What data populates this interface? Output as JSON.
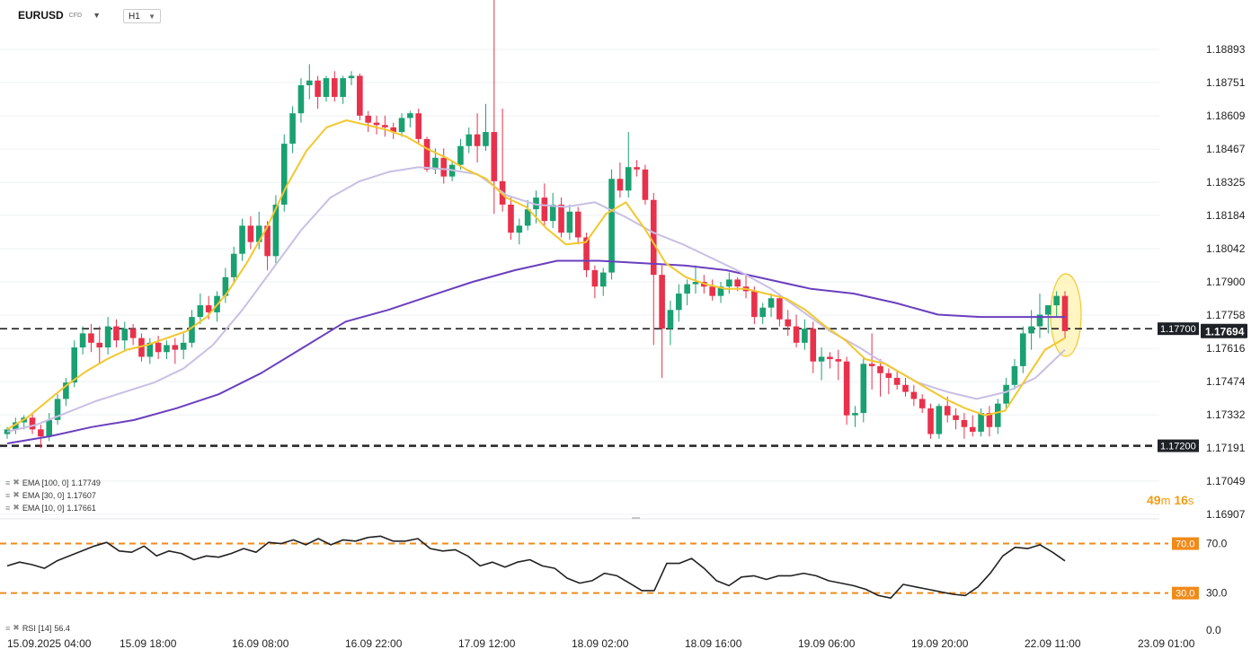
{
  "header": {
    "symbol": "EURUSD",
    "symbol_type": "CFD",
    "timeframe": "H1"
  },
  "colors": {
    "up": "#1aa071",
    "down": "#e8314b",
    "ema10": "#f3c72e",
    "ema30": "#c9bfe3",
    "ema100": "#6a3fbe",
    "rsi_line": "#222222",
    "rsi_levels": "#f08a1a",
    "grid": "#eef0f3",
    "dashed_level": "#222222",
    "highlight": "#fff3b0"
  },
  "indicators": [
    {
      "name": "EMA [100, 0]",
      "value": "1.17749"
    },
    {
      "name": "EMA [30, 0]",
      "value": "1.17607"
    },
    {
      "name": "EMA [10, 0]",
      "value": "1.17661"
    }
  ],
  "rsi": {
    "name": "RSI [14]",
    "value": "56.4"
  },
  "countdown": {
    "minutes": "49",
    "m": "m",
    "seconds": "16",
    "s": "s"
  },
  "chart_data": [
    {
      "type": "candlestick",
      "title": "EURUSD H1",
      "x_tick_labels": [
        "15.09.2025 04:00",
        "15.09 18:00",
        "16.09 08:00",
        "16.09 22:00",
        "17.09 12:00",
        "18.09 02:00",
        "18.09 16:00",
        "19.09 06:00",
        "19.09 20:00",
        "22.09 11:00",
        "23.09 01:00"
      ],
      "y_tick_labels": [
        "1.18893",
        "1.18751",
        "1.18609",
        "1.18467",
        "1.18325",
        "1.18184",
        "1.18042",
        "1.17900",
        "1.17758",
        "1.17616",
        "1.17474",
        "1.17332",
        "1.17191",
        "1.17049",
        "1.16907"
      ],
      "ylim": [
        1.16907,
        1.18893
      ],
      "price_levels": [
        {
          "label": "1.17700",
          "value": 1.177,
          "style": "dashed"
        },
        {
          "label": "1.17200",
          "value": 1.172,
          "style": "dashed"
        }
      ],
      "current_price": {
        "label": "1.17694",
        "value": 1.17694
      },
      "candles": [
        [
          1.1725,
          1.1728,
          1.1723,
          1.1727
        ],
        [
          1.1727,
          1.1732,
          1.1725,
          1.173
        ],
        [
          1.173,
          1.1733,
          1.1727,
          1.1732
        ],
        [
          1.1732,
          1.1734,
          1.1725,
          1.1727
        ],
        [
          1.1727,
          1.1729,
          1.1719,
          1.1724
        ],
        [
          1.1724,
          1.1734,
          1.1722,
          1.1731
        ],
        [
          1.1731,
          1.1742,
          1.1729,
          1.174
        ],
        [
          1.174,
          1.1749,
          1.1737,
          1.1747
        ],
        [
          1.1747,
          1.1765,
          1.1745,
          1.1762
        ],
        [
          1.1762,
          1.1771,
          1.1759,
          1.1768
        ],
        [
          1.1768,
          1.1772,
          1.176,
          1.1764
        ],
        [
          1.1764,
          1.1771,
          1.1755,
          1.1762
        ],
        [
          1.1762,
          1.1775,
          1.1759,
          1.1771
        ],
        [
          1.1771,
          1.1774,
          1.1762,
          1.1765
        ],
        [
          1.1765,
          1.1773,
          1.1761,
          1.177
        ],
        [
          1.177,
          1.1772,
          1.1763,
          1.1766
        ],
        [
          1.1766,
          1.1768,
          1.1756,
          1.1758
        ],
        [
          1.1758,
          1.1766,
          1.1755,
          1.1764
        ],
        [
          1.1764,
          1.1767,
          1.1757,
          1.176
        ],
        [
          1.176,
          1.1765,
          1.1757,
          1.1763
        ],
        [
          1.1763,
          1.1766,
          1.1755,
          1.1761
        ],
        [
          1.1761,
          1.1768,
          1.1757,
          1.1764
        ],
        [
          1.1764,
          1.1778,
          1.1762,
          1.1775
        ],
        [
          1.1775,
          1.1785,
          1.1772,
          1.178
        ],
        [
          1.178,
          1.1784,
          1.1774,
          1.1777
        ],
        [
          1.1777,
          1.1786,
          1.1773,
          1.1784
        ],
        [
          1.1784,
          1.1796,
          1.1781,
          1.1792
        ],
        [
          1.1792,
          1.1805,
          1.179,
          1.1802
        ],
        [
          1.1802,
          1.1817,
          1.1799,
          1.1814
        ],
        [
          1.1814,
          1.1818,
          1.1804,
          1.1807
        ],
        [
          1.1807,
          1.182,
          1.1804,
          1.1814
        ],
        [
          1.1814,
          1.1816,
          1.1795,
          1.1801
        ],
        [
          1.1801,
          1.1827,
          1.1798,
          1.1823
        ],
        [
          1.1823,
          1.1853,
          1.182,
          1.1849
        ],
        [
          1.1849,
          1.1865,
          1.1845,
          1.1862
        ],
        [
          1.1862,
          1.1877,
          1.1858,
          1.1874
        ],
        [
          1.1874,
          1.1883,
          1.1868,
          1.1876
        ],
        [
          1.1876,
          1.1878,
          1.1864,
          1.1869
        ],
        [
          1.1869,
          1.1878,
          1.1867,
          1.1877
        ],
        [
          1.1877,
          1.188,
          1.1867,
          1.1869
        ],
        [
          1.1869,
          1.1878,
          1.1866,
          1.1877
        ],
        [
          1.1877,
          1.188,
          1.1874,
          1.1878
        ],
        [
          1.1878,
          1.1879,
          1.1859,
          1.1861
        ],
        [
          1.1861,
          1.1863,
          1.1854,
          1.1858
        ],
        [
          1.1858,
          1.1861,
          1.1853,
          1.1857
        ],
        [
          1.1857,
          1.1861,
          1.1852,
          1.1856
        ],
        [
          1.1856,
          1.1858,
          1.1851,
          1.1854
        ],
        [
          1.1854,
          1.1862,
          1.1852,
          1.186
        ],
        [
          1.186,
          1.1863,
          1.1856,
          1.1862
        ],
        [
          1.1862,
          1.1864,
          1.1849,
          1.1851
        ],
        [
          1.1851,
          1.1852,
          1.1837,
          1.1838
        ],
        [
          1.1838,
          1.1847,
          1.1836,
          1.1843
        ],
        [
          1.1843,
          1.1847,
          1.1832,
          1.1835
        ],
        [
          1.1835,
          1.1842,
          1.1833,
          1.184
        ],
        [
          1.184,
          1.1851,
          1.1838,
          1.1848
        ],
        [
          1.1848,
          1.1856,
          1.1845,
          1.1853
        ],
        [
          1.1853,
          1.1862,
          1.1841,
          1.1848
        ],
        [
          1.1848,
          1.1866,
          1.1846,
          1.1854
        ],
        [
          1.1854,
          1.1946,
          1.1819,
          1.1833
        ],
        [
          1.1833,
          1.1864,
          1.182,
          1.1823
        ],
        [
          1.1823,
          1.1826,
          1.1808,
          1.1811
        ],
        [
          1.1811,
          1.1817,
          1.1806,
          1.1814
        ],
        [
          1.1814,
          1.1825,
          1.1812,
          1.1821
        ],
        [
          1.1821,
          1.1829,
          1.1815,
          1.1826
        ],
        [
          1.1826,
          1.1832,
          1.1814,
          1.1816
        ],
        [
          1.1816,
          1.1828,
          1.1813,
          1.1823
        ],
        [
          1.1823,
          1.1826,
          1.1809,
          1.1811
        ],
        [
          1.1811,
          1.1823,
          1.1808,
          1.182
        ],
        [
          1.182,
          1.1822,
          1.1806,
          1.1809
        ],
        [
          1.1809,
          1.1811,
          1.1792,
          1.1795
        ],
        [
          1.1795,
          1.1797,
          1.1783,
          1.1788
        ],
        [
          1.1788,
          1.1796,
          1.1784,
          1.1794
        ],
        [
          1.1794,
          1.1838,
          1.1791,
          1.1834
        ],
        [
          1.1834,
          1.1841,
          1.1826,
          1.1829
        ],
        [
          1.1829,
          1.1854,
          1.1826,
          1.1839
        ],
        [
          1.1839,
          1.1842,
          1.1835,
          1.1838
        ],
        [
          1.1838,
          1.184,
          1.1823,
          1.1825
        ],
        [
          1.1825,
          1.1828,
          1.1763,
          1.1793
        ],
        [
          1.1793,
          1.1797,
          1.1749,
          1.177
        ],
        [
          1.177,
          1.1782,
          1.1763,
          1.1778
        ],
        [
          1.1778,
          1.1789,
          1.1773,
          1.1785
        ],
        [
          1.1785,
          1.1791,
          1.178,
          1.1789
        ],
        [
          1.1789,
          1.1797,
          1.1785,
          1.179
        ],
        [
          1.179,
          1.1793,
          1.1785,
          1.1788
        ],
        [
          1.1788,
          1.1791,
          1.1782,
          1.1784
        ],
        [
          1.1784,
          1.179,
          1.1781,
          1.1788
        ],
        [
          1.1788,
          1.1794,
          1.1785,
          1.1791
        ],
        [
          1.1791,
          1.1792,
          1.1786,
          1.1788
        ],
        [
          1.1788,
          1.1793,
          1.1783,
          1.1786
        ],
        [
          1.1786,
          1.1788,
          1.1772,
          1.1775
        ],
        [
          1.1775,
          1.1781,
          1.1772,
          1.1779
        ],
        [
          1.1779,
          1.1785,
          1.1775,
          1.1783
        ],
        [
          1.1783,
          1.1785,
          1.1771,
          1.1774
        ],
        [
          1.1774,
          1.1778,
          1.1767,
          1.1771
        ],
        [
          1.1771,
          1.1776,
          1.1762,
          1.1764
        ],
        [
          1.1764,
          1.1774,
          1.1761,
          1.177
        ],
        [
          1.177,
          1.1773,
          1.1751,
          1.1756
        ],
        [
          1.1756,
          1.1762,
          1.1748,
          1.1758
        ],
        [
          1.1758,
          1.176,
          1.1753,
          1.1757
        ],
        [
          1.1757,
          1.1761,
          1.1748,
          1.1756
        ],
        [
          1.1756,
          1.1758,
          1.1729,
          1.1733
        ],
        [
          1.1733,
          1.1737,
          1.1728,
          1.1734
        ],
        [
          1.1734,
          1.1758,
          1.173,
          1.1755
        ],
        [
          1.1755,
          1.1768,
          1.1744,
          1.1754
        ],
        [
          1.1754,
          1.1757,
          1.1741,
          1.1751
        ],
        [
          1.1751,
          1.1753,
          1.1742,
          1.1749
        ],
        [
          1.1749,
          1.1752,
          1.1744,
          1.1746
        ],
        [
          1.1746,
          1.1749,
          1.1741,
          1.1743
        ],
        [
          1.1743,
          1.1746,
          1.1737,
          1.174
        ],
        [
          1.174,
          1.1742,
          1.1734,
          1.1736
        ],
        [
          1.1736,
          1.1738,
          1.1723,
          1.1725
        ],
        [
          1.1725,
          1.1738,
          1.1723,
          1.1737
        ],
        [
          1.1737,
          1.1741,
          1.173,
          1.1733
        ],
        [
          1.1733,
          1.1736,
          1.1727,
          1.1731
        ],
        [
          1.1731,
          1.1734,
          1.1723,
          1.1728
        ],
        [
          1.1728,
          1.1733,
          1.1724,
          1.1726
        ],
        [
          1.1726,
          1.1736,
          1.1724,
          1.1734
        ],
        [
          1.1734,
          1.1737,
          1.1724,
          1.1728
        ],
        [
          1.1728,
          1.174,
          1.1725,
          1.1738
        ],
        [
          1.1738,
          1.1749,
          1.1736,
          1.1746
        ],
        [
          1.1746,
          1.1757,
          1.1744,
          1.1754
        ],
        [
          1.1754,
          1.1771,
          1.1751,
          1.1768
        ],
        [
          1.1768,
          1.1778,
          1.1761,
          1.1771
        ],
        [
          1.1771,
          1.1785,
          1.1766,
          1.1776
        ],
        [
          1.1776,
          1.178,
          1.1768,
          1.178
        ],
        [
          1.178,
          1.1786,
          1.1775,
          1.1784
        ],
        [
          1.1784,
          1.1786,
          1.1766,
          1.1769
        ]
      ],
      "ema10": [
        1.1727,
        1.1732,
        1.1739,
        1.1746,
        1.1752,
        1.1757,
        1.1761,
        1.1763,
        1.1766,
        1.1769,
        1.1775,
        1.1785,
        1.1798,
        1.1813,
        1.1831,
        1.1846,
        1.1856,
        1.1859,
        1.1857,
        1.1855,
        1.1852,
        1.1847,
        1.1843,
        1.1838,
        1.1834,
        1.1826,
        1.1822,
        1.1813,
        1.1806,
        1.1807,
        1.1819,
        1.1824,
        1.1812,
        1.1798,
        1.1792,
        1.1789,
        1.1787,
        1.1787,
        1.1785,
        1.1783,
        1.1778,
        1.1771,
        1.1765,
        1.1757,
        1.1755,
        1.175,
        1.1745,
        1.174,
        1.1736,
        1.1733,
        1.1735,
        1.1748,
        1.1761,
        1.1766
      ],
      "ema30": [
        1.1726,
        1.1729,
        1.1734,
        1.1739,
        1.1743,
        1.1747,
        1.1753,
        1.1763,
        1.1778,
        1.1795,
        1.1812,
        1.1826,
        1.1833,
        1.1837,
        1.1839,
        1.1838,
        1.1836,
        1.1827,
        1.1823,
        1.1822,
        1.1824,
        1.1818,
        1.1811,
        1.1806,
        1.18,
        1.1794,
        1.1787,
        1.1778,
        1.1769,
        1.1762,
        1.1754,
        1.1747,
        1.1743,
        1.174,
        1.1743,
        1.1749,
        1.1761
      ],
      "ema100": [
        1.1721,
        1.1724,
        1.1728,
        1.1731,
        1.1736,
        1.1742,
        1.1751,
        1.1762,
        1.1773,
        1.1778,
        1.1784,
        1.179,
        1.1795,
        1.1799,
        1.1799,
        1.1798,
        1.1797,
        1.1795,
        1.1791,
        1.1787,
        1.1785,
        1.1781,
        1.1776,
        1.1775,
        1.1775,
        1.1775
      ]
    },
    {
      "type": "line",
      "title": "RSI [14]",
      "y_tick_labels": [
        "70.0",
        "30.0",
        "0.0"
      ],
      "ylim": [
        0,
        90
      ],
      "levels": [
        70,
        30
      ],
      "values": [
        52,
        55,
        53,
        50,
        56,
        60,
        64,
        68,
        71,
        64,
        63,
        68,
        60,
        64,
        62,
        57,
        60,
        59,
        62,
        66,
        63,
        71,
        70,
        73,
        69,
        74,
        69,
        73,
        72,
        75,
        76,
        72,
        72,
        74,
        66,
        64,
        65,
        60,
        52,
        55,
        51,
        55,
        57,
        52,
        50,
        42,
        38,
        40,
        46,
        44,
        38,
        32,
        32,
        54,
        54,
        58,
        50,
        40,
        36,
        43,
        44,
        41,
        44,
        44,
        46,
        44,
        40,
        38,
        36,
        33,
        28,
        26,
        37,
        35,
        33,
        31,
        29,
        28,
        35,
        46,
        60,
        67,
        66,
        69,
        63,
        56
      ]
    }
  ]
}
